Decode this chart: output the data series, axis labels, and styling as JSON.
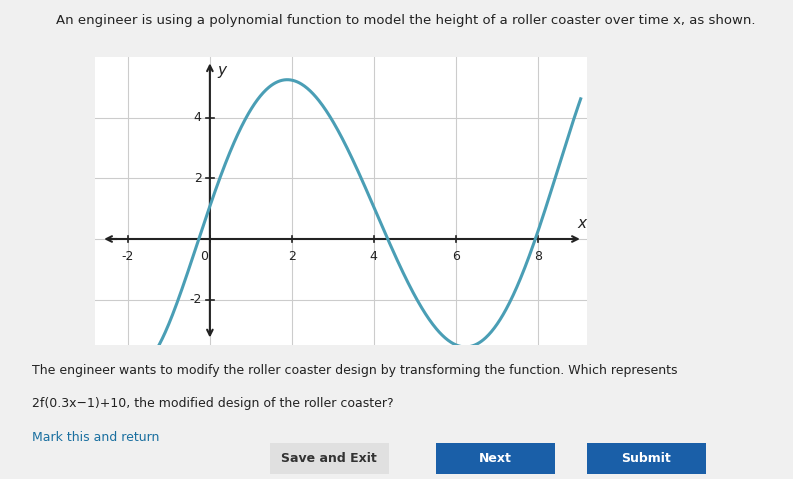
{
  "title": "An engineer is using a polynomial function to model the height of a roller coaster over time x, as shown.",
  "xlabel": "x",
  "ylabel": "y",
  "xlim": [
    -2.8,
    9.2
  ],
  "ylim": [
    -3.5,
    6.0
  ],
  "xticks": [
    -2,
    0,
    2,
    4,
    6,
    8
  ],
  "yticks": [
    -2,
    0,
    2,
    4
  ],
  "curve_color": "#4a9eb5",
  "curve_linewidth": 2.2,
  "background_color": "#ffffff",
  "grid_color": "#cccccc",
  "axis_color": "#222222",
  "text_color": "#222222",
  "bottom_text_line1": "The engineer wants to modify the roller coaster design by transforming the function. Which represents",
  "bottom_text_line2": "2f(0.3x−1)+10, the modified design of the roller coaster?",
  "bottom_link": "Mark this and return",
  "button1": "Save and Exit",
  "button2": "Next",
  "button3": "Submit",
  "key_x": [
    -1.5,
    0.0,
    1.5,
    4.3,
    7.0,
    8.0,
    9.0
  ],
  "key_y": [
    -4.0,
    1.0,
    5.2,
    0.0,
    -2.6,
    0.0,
    4.5
  ]
}
